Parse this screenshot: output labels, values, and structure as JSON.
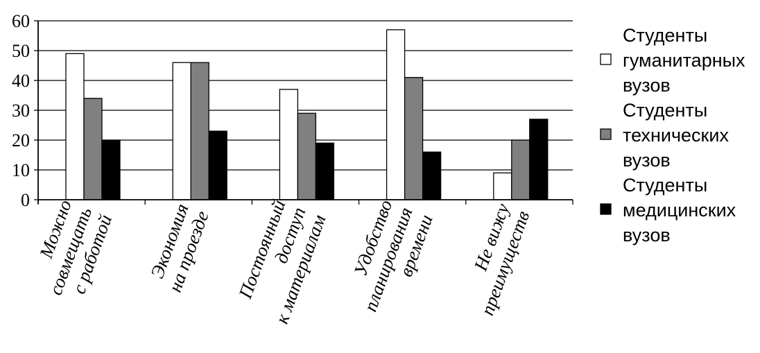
{
  "chart_data": {
    "type": "bar",
    "title": "",
    "xlabel": "",
    "ylabel": "",
    "ylim": [
      0,
      60
    ],
    "yticks": [
      0,
      10,
      20,
      30,
      40,
      50,
      60
    ],
    "grid": true,
    "legend_position": "right",
    "categories": [
      [
        "Можно",
        "совмещать",
        "с работой"
      ],
      [
        "Экономия",
        "на проезде"
      ],
      [
        "Постоянный",
        "доступ",
        "к материалам"
      ],
      [
        "Удобство",
        "планирования",
        "времени"
      ],
      [
        "Не вижу",
        "преимуществ"
      ]
    ],
    "series": [
      {
        "name": [
          "Студенты",
          "гуманитарных",
          "вузов"
        ],
        "color": "#ffffff",
        "values": [
          49,
          46,
          37,
          57,
          9
        ]
      },
      {
        "name": [
          "Студенты",
          "технических",
          "вузов"
        ],
        "color": "#808080",
        "values": [
          34,
          46,
          29,
          41,
          20
        ]
      },
      {
        "name": [
          "Студенты",
          "медицинских",
          "вузов"
        ],
        "color": "#000000",
        "values": [
          20,
          23,
          19,
          16,
          27
        ]
      }
    ]
  }
}
